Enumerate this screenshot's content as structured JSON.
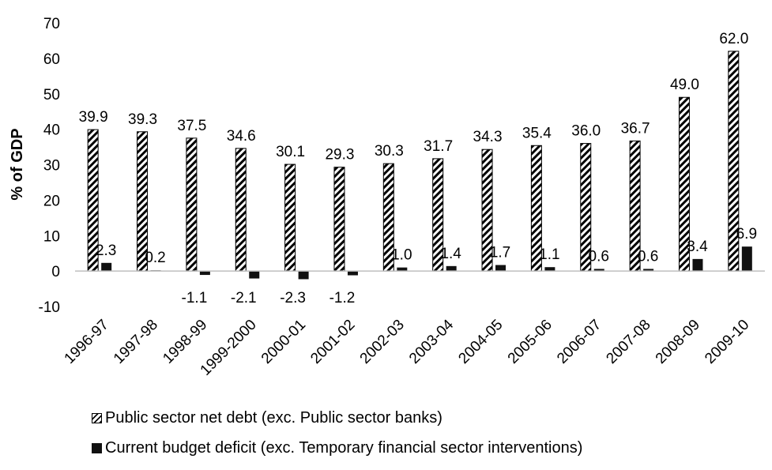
{
  "chart_data": {
    "type": "bar",
    "ylabel": "% of GDP",
    "xlabel": "",
    "ylim": [
      -10,
      70
    ],
    "yticks": [
      -10,
      0,
      10,
      20,
      30,
      40,
      50,
      60,
      70
    ],
    "categories": [
      "1996-97",
      "1997-98",
      "1998-99",
      "1999-2000",
      "2000-01",
      "2001-02",
      "2002-03",
      "2003-04",
      "2004-05",
      "2005-06",
      "2006-07",
      "2007-08",
      "2008-09",
      "2009-10"
    ],
    "series": [
      {
        "name": "Public sector net debt (exc. Public sector banks)",
        "style": "diagonal-hatch",
        "color": "#000000",
        "values": [
          39.9,
          39.3,
          37.5,
          34.6,
          30.1,
          29.3,
          30.3,
          31.7,
          34.3,
          35.4,
          36.0,
          36.7,
          49.0,
          62.0
        ],
        "labels": [
          "39.9",
          "39.3",
          "37.5",
          "34.6",
          "30.1",
          "29.3",
          "30.3",
          "31.7",
          "34.3",
          "35.4",
          "36.0",
          "36.7",
          "49.0",
          "62.0"
        ]
      },
      {
        "name": "Current budget deficit (exc. Temporary financial sector interventions)",
        "style": "solid",
        "color": "#111111",
        "values": [
          2.3,
          0.2,
          -1.1,
          -2.1,
          -2.3,
          -1.2,
          1.0,
          1.4,
          1.7,
          1.1,
          0.6,
          0.6,
          3.4,
          6.9
        ],
        "labels": [
          "2.3",
          "0.2",
          "-1.1",
          "-2.1",
          "-2.3",
          "-1.2",
          "1.0",
          "1.4",
          "1.7",
          "1.1",
          "0.6",
          "0.6",
          "3.4",
          "6.9"
        ]
      }
    ],
    "grid": false,
    "legend_position": "bottom-left"
  }
}
